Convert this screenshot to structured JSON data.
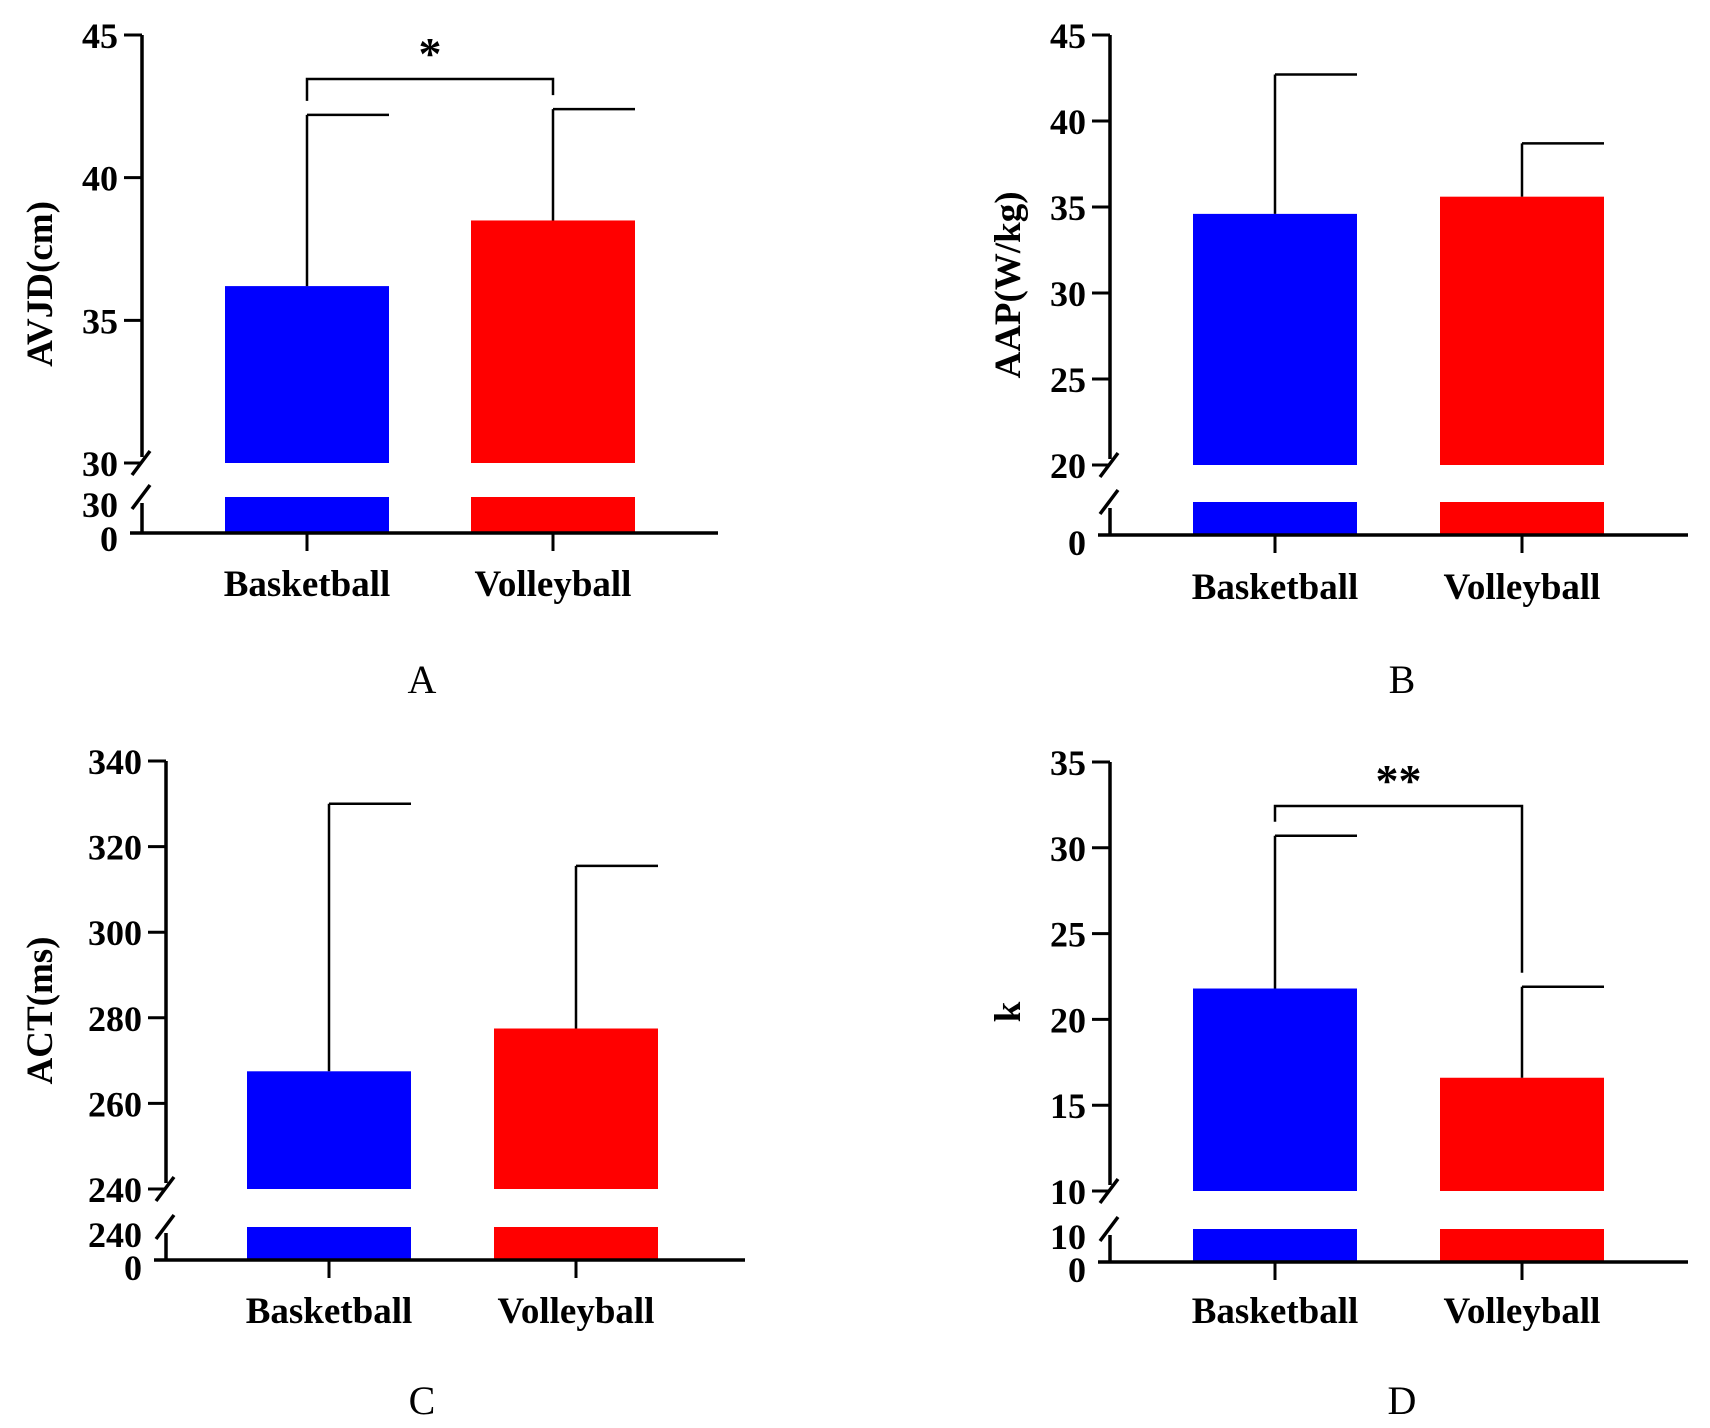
{
  "colors": {
    "basketball": "#0000ff",
    "volleyball": "#ff0000",
    "axis": "#000000",
    "background": "#ffffff"
  },
  "chart_data": [
    {
      "type": "bar",
      "panel_label": "A",
      "ylabel": "AVJD(cm)",
      "categories": [
        "Basketball",
        "Volleyball"
      ],
      "values": [
        36.2,
        38.5
      ],
      "error_upper": [
        42.2,
        42.4
      ],
      "ylim": [
        30,
        45
      ],
      "yticks": [
        30,
        35,
        40,
        45
      ],
      "axis_break": true,
      "lower_tick_labels": [
        "30",
        "0"
      ],
      "significance": {
        "label": "*",
        "between": [
          0,
          1
        ]
      },
      "grid": false,
      "legend": "none"
    },
    {
      "type": "bar",
      "panel_label": "B",
      "ylabel": "AAP(W/kg)",
      "categories": [
        "Basketball",
        "Volleyball"
      ],
      "values": [
        34.6,
        35.6
      ],
      "error_upper": [
        42.7,
        38.7
      ],
      "ylim": [
        20,
        45
      ],
      "yticks": [
        20,
        25,
        30,
        35,
        40,
        45
      ],
      "axis_break": true,
      "lower_tick_labels": [
        "0"
      ],
      "significance": null,
      "grid": false,
      "legend": "none"
    },
    {
      "type": "bar",
      "panel_label": "C",
      "ylabel": "ACT(ms)",
      "categories": [
        "Basketball",
        "Volleyball"
      ],
      "values": [
        267.5,
        277.5
      ],
      "error_upper": [
        330,
        315.5
      ],
      "ylim": [
        240,
        340
      ],
      "yticks": [
        240,
        260,
        280,
        300,
        320,
        340
      ],
      "axis_break": true,
      "lower_tick_labels": [
        "240",
        "0"
      ],
      "significance": null,
      "grid": false,
      "legend": "none"
    },
    {
      "type": "bar",
      "panel_label": "D",
      "ylabel": "k",
      "categories": [
        "Basketball",
        "Volleyball"
      ],
      "values": [
        21.8,
        16.6
      ],
      "error_upper": [
        30.7,
        21.9
      ],
      "ylim": [
        10,
        35
      ],
      "yticks": [
        10,
        15,
        20,
        25,
        30,
        35
      ],
      "axis_break": true,
      "lower_tick_labels": [
        "10",
        "0"
      ],
      "significance": {
        "label": "**",
        "between": [
          0,
          1
        ]
      },
      "grid": false,
      "legend": "none"
    }
  ]
}
